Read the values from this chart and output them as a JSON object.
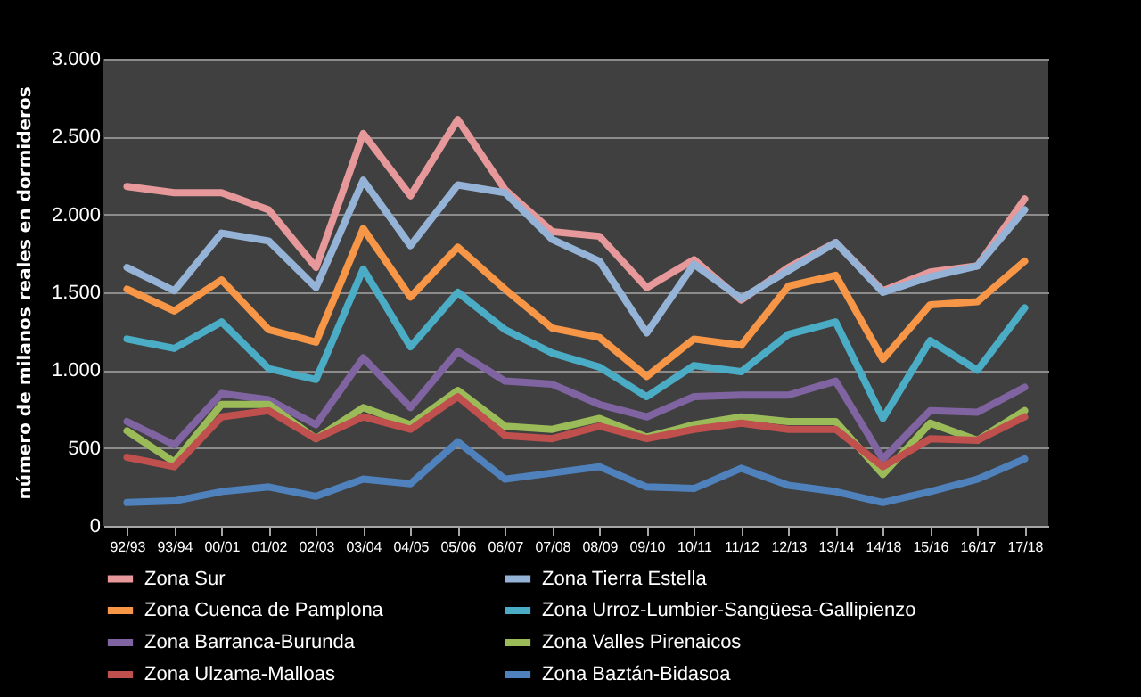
{
  "chart_data": {
    "type": "line",
    "ylabel": "número de milanos reales en dormideros",
    "categories": [
      "92/93",
      "93/94",
      "00/01",
      "01/02",
      "02/03",
      "03/04",
      "04/05",
      "05/06",
      "06/07",
      "07/08",
      "08/09",
      "09/10",
      "10/11",
      "11/12",
      "12/13",
      "13/14",
      "14/18",
      "15/16",
      "16/17",
      "17/18"
    ],
    "ylim": [
      0,
      3000
    ],
    "yticks": [
      {
        "value": 0,
        "label": "0"
      },
      {
        "value": 500,
        "label": "500"
      },
      {
        "value": 1000,
        "label": "1.000"
      },
      {
        "value": 1500,
        "label": "1.500"
      },
      {
        "value": 2000,
        "label": "2.000"
      },
      {
        "value": 2500,
        "label": "2.500"
      },
      {
        "value": 3000,
        "label": "3.000"
      }
    ],
    "grid": "y",
    "legend": "bottom",
    "marker": "none",
    "line_style": "solid",
    "series": [
      {
        "name": "Zona Sur",
        "color": "#e6989a",
        "values": [
          2180,
          2140,
          2140,
          2030,
          1660,
          2520,
          2120,
          2610,
          2160,
          1890,
          1860,
          1530,
          1710,
          1450,
          1660,
          1820,
          1510,
          1630,
          1670,
          2100
        ]
      },
      {
        "name": "Zona Tierra Estella",
        "color": "#95b3d7",
        "values": [
          1660,
          1510,
          1880,
          1830,
          1530,
          2220,
          1800,
          2190,
          2140,
          1840,
          1700,
          1240,
          1680,
          1460,
          1640,
          1820,
          1500,
          1600,
          1670,
          2030
        ]
      },
      {
        "name": "Zona Cuenca de Pamplona",
        "color": "#f79646",
        "values": [
          1520,
          1380,
          1580,
          1260,
          1180,
          1910,
          1470,
          1790,
          1520,
          1270,
          1210,
          960,
          1200,
          1160,
          1540,
          1610,
          1070,
          1420,
          1440,
          1700
        ]
      },
      {
        "name": "Zona Urroz-Lumbier-Sangüesa-Gallipienzo",
        "color": "#4bacc6",
        "values": [
          1200,
          1140,
          1310,
          1010,
          940,
          1650,
          1150,
          1500,
          1260,
          1110,
          1020,
          830,
          1030,
          990,
          1230,
          1310,
          690,
          1190,
          1000,
          1400
        ]
      },
      {
        "name": "Zona Barranca-Burunda",
        "color": "#8064a2",
        "values": [
          670,
          520,
          850,
          810,
          650,
          1080,
          760,
          1120,
          930,
          910,
          780,
          700,
          830,
          840,
          840,
          930,
          430,
          740,
          730,
          890
        ]
      },
      {
        "name": "Zona Valles Pirenaicos",
        "color": "#9bbb59",
        "values": [
          610,
          410,
          780,
          780,
          560,
          760,
          650,
          870,
          640,
          620,
          690,
          570,
          650,
          700,
          670,
          670,
          330,
          660,
          550,
          740
        ]
      },
      {
        "name": "Zona Ulzama-Malloas",
        "color": "#c0504d",
        "values": [
          440,
          380,
          700,
          740,
          560,
          700,
          620,
          830,
          580,
          560,
          640,
          560,
          620,
          660,
          620,
          620,
          380,
          560,
          550,
          700
        ]
      },
      {
        "name": "Zona Baztán-Bidasoa",
        "color": "#4f81bd",
        "values": [
          150,
          160,
          220,
          250,
          190,
          300,
          270,
          540,
          300,
          340,
          380,
          250,
          240,
          370,
          260,
          220,
          150,
          220,
          300,
          430
        ]
      }
    ]
  }
}
